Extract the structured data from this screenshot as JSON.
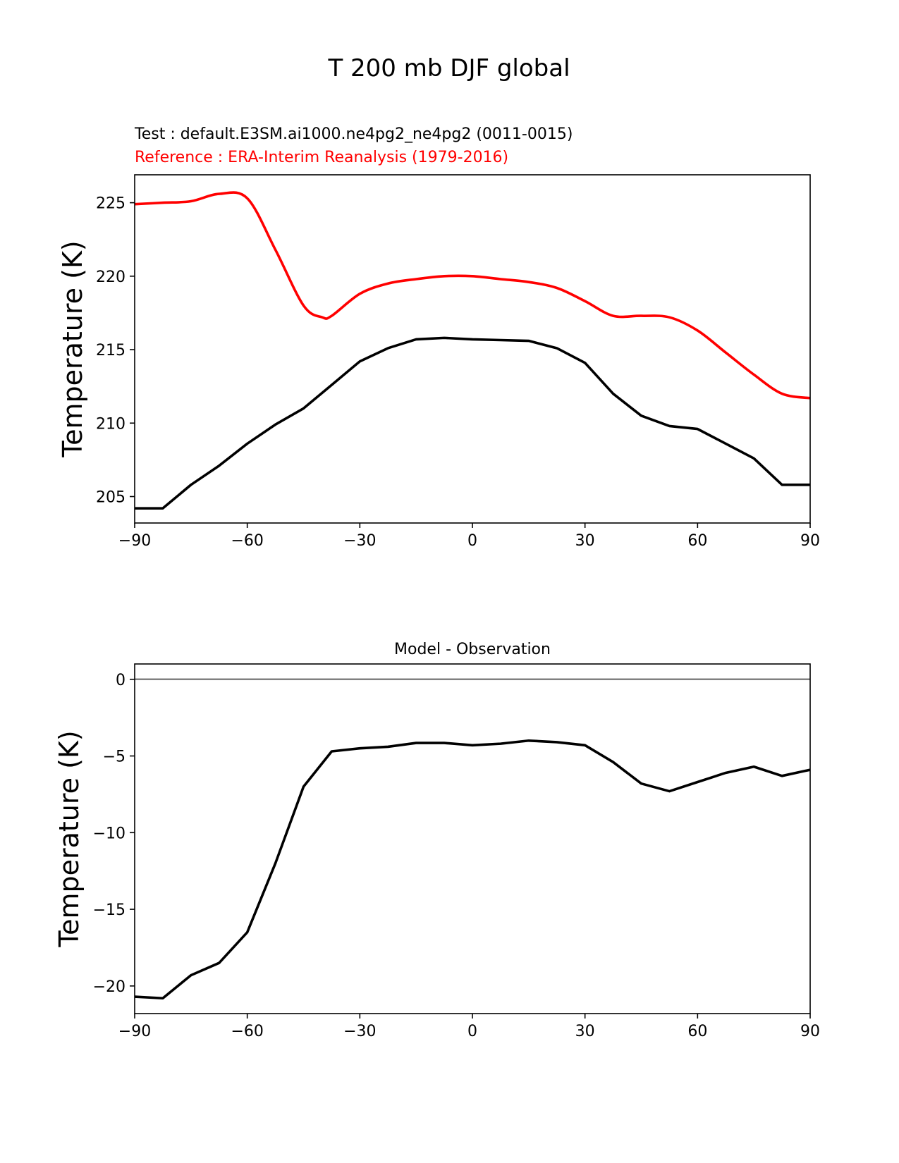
{
  "figure_title": "T 200 mb DJF global",
  "chart_data": [
    {
      "type": "line",
      "title": "",
      "test_label": "Test : default.E3SM.ai1000.ne4pg2_ne4pg2 (0011-0015)",
      "reference_label": "Reference : ERA-Interim Reanalysis (1979-2016)",
      "xlabel": "",
      "ylabel": "Temperature (K)",
      "xlim": [
        -90,
        90
      ],
      "ylim": [
        203.2,
        226.9
      ],
      "xticks": [
        -90,
        -60,
        -30,
        0,
        30,
        60,
        90
      ],
      "xtick_labels": [
        "−90",
        "−60",
        "−30",
        "0",
        "30",
        "60",
        "90"
      ],
      "yticks": [
        205,
        210,
        215,
        220,
        225
      ],
      "ytick_labels": [
        "205",
        "210",
        "215",
        "220",
        "225"
      ],
      "grid": false,
      "series": [
        {
          "name": "Reference",
          "color": "#ff0000",
          "smooth": true,
          "x": [
            -90,
            -82.5,
            -75,
            -67.5,
            -60,
            -52.5,
            -45,
            -40,
            -37.5,
            -30,
            -22.5,
            -15,
            -7.5,
            0,
            7.5,
            15,
            22.5,
            30,
            37.5,
            45,
            52.5,
            60,
            67.5,
            75,
            82.5,
            90
          ],
          "y": [
            224.9,
            225.0,
            225.1,
            225.6,
            225.3,
            221.8,
            218.0,
            217.2,
            217.3,
            218.8,
            219.5,
            219.8,
            220.0,
            220.0,
            219.8,
            219.6,
            219.2,
            218.3,
            217.3,
            217.3,
            217.2,
            216.3,
            214.8,
            213.3,
            212.0,
            211.7
          ]
        },
        {
          "name": "Test",
          "color": "#000000",
          "smooth": false,
          "x": [
            -90,
            -82.5,
            -75,
            -67.5,
            -60,
            -52.5,
            -45,
            -37.5,
            -30,
            -22.5,
            -15,
            -7.5,
            0,
            7.5,
            15,
            22.5,
            30,
            37.5,
            45,
            52.5,
            60,
            67.5,
            75,
            82.5,
            90
          ],
          "y": [
            204.2,
            204.2,
            205.8,
            207.1,
            208.6,
            209.9,
            211.0,
            212.6,
            214.2,
            215.1,
            215.7,
            215.8,
            215.7,
            215.65,
            215.6,
            215.1,
            214.1,
            212.0,
            210.5,
            209.8,
            209.6,
            208.6,
            207.6,
            205.8,
            205.8
          ]
        }
      ]
    },
    {
      "type": "line",
      "title": "Model - Observation",
      "xlabel": "",
      "ylabel": "Temperature (K)",
      "xlim": [
        -90,
        90
      ],
      "ylim": [
        -21.8,
        1.0
      ],
      "xticks": [
        -90,
        -60,
        -30,
        0,
        30,
        60,
        90
      ],
      "xtick_labels": [
        "−90",
        "−60",
        "−30",
        "0",
        "30",
        "60",
        "90"
      ],
      "yticks": [
        0,
        -5,
        -10,
        -15,
        -20
      ],
      "ytick_labels": [
        "0",
        "−5",
        "−10",
        "−15",
        "−20"
      ],
      "grid": false,
      "zero_line": {
        "y": 0,
        "color": "#808080"
      },
      "series": [
        {
          "name": "Model - Observation",
          "color": "#000000",
          "smooth": false,
          "x": [
            -90,
            -82.5,
            -75,
            -67.5,
            -60,
            -52.5,
            -45,
            -37.5,
            -30,
            -22.5,
            -15,
            -7.5,
            0,
            7.5,
            15,
            22.5,
            30,
            37.5,
            45,
            52.5,
            60,
            67.5,
            75,
            82.5,
            90
          ],
          "y": [
            -20.7,
            -20.8,
            -19.3,
            -18.5,
            -16.5,
            -12.0,
            -7.0,
            -4.7,
            -4.5,
            -4.4,
            -4.15,
            -4.15,
            -4.3,
            -4.2,
            -4.0,
            -4.1,
            -4.3,
            -5.4,
            -6.8,
            -7.3,
            -6.7,
            -6.1,
            -5.7,
            -6.3,
            -5.9
          ]
        }
      ]
    }
  ]
}
